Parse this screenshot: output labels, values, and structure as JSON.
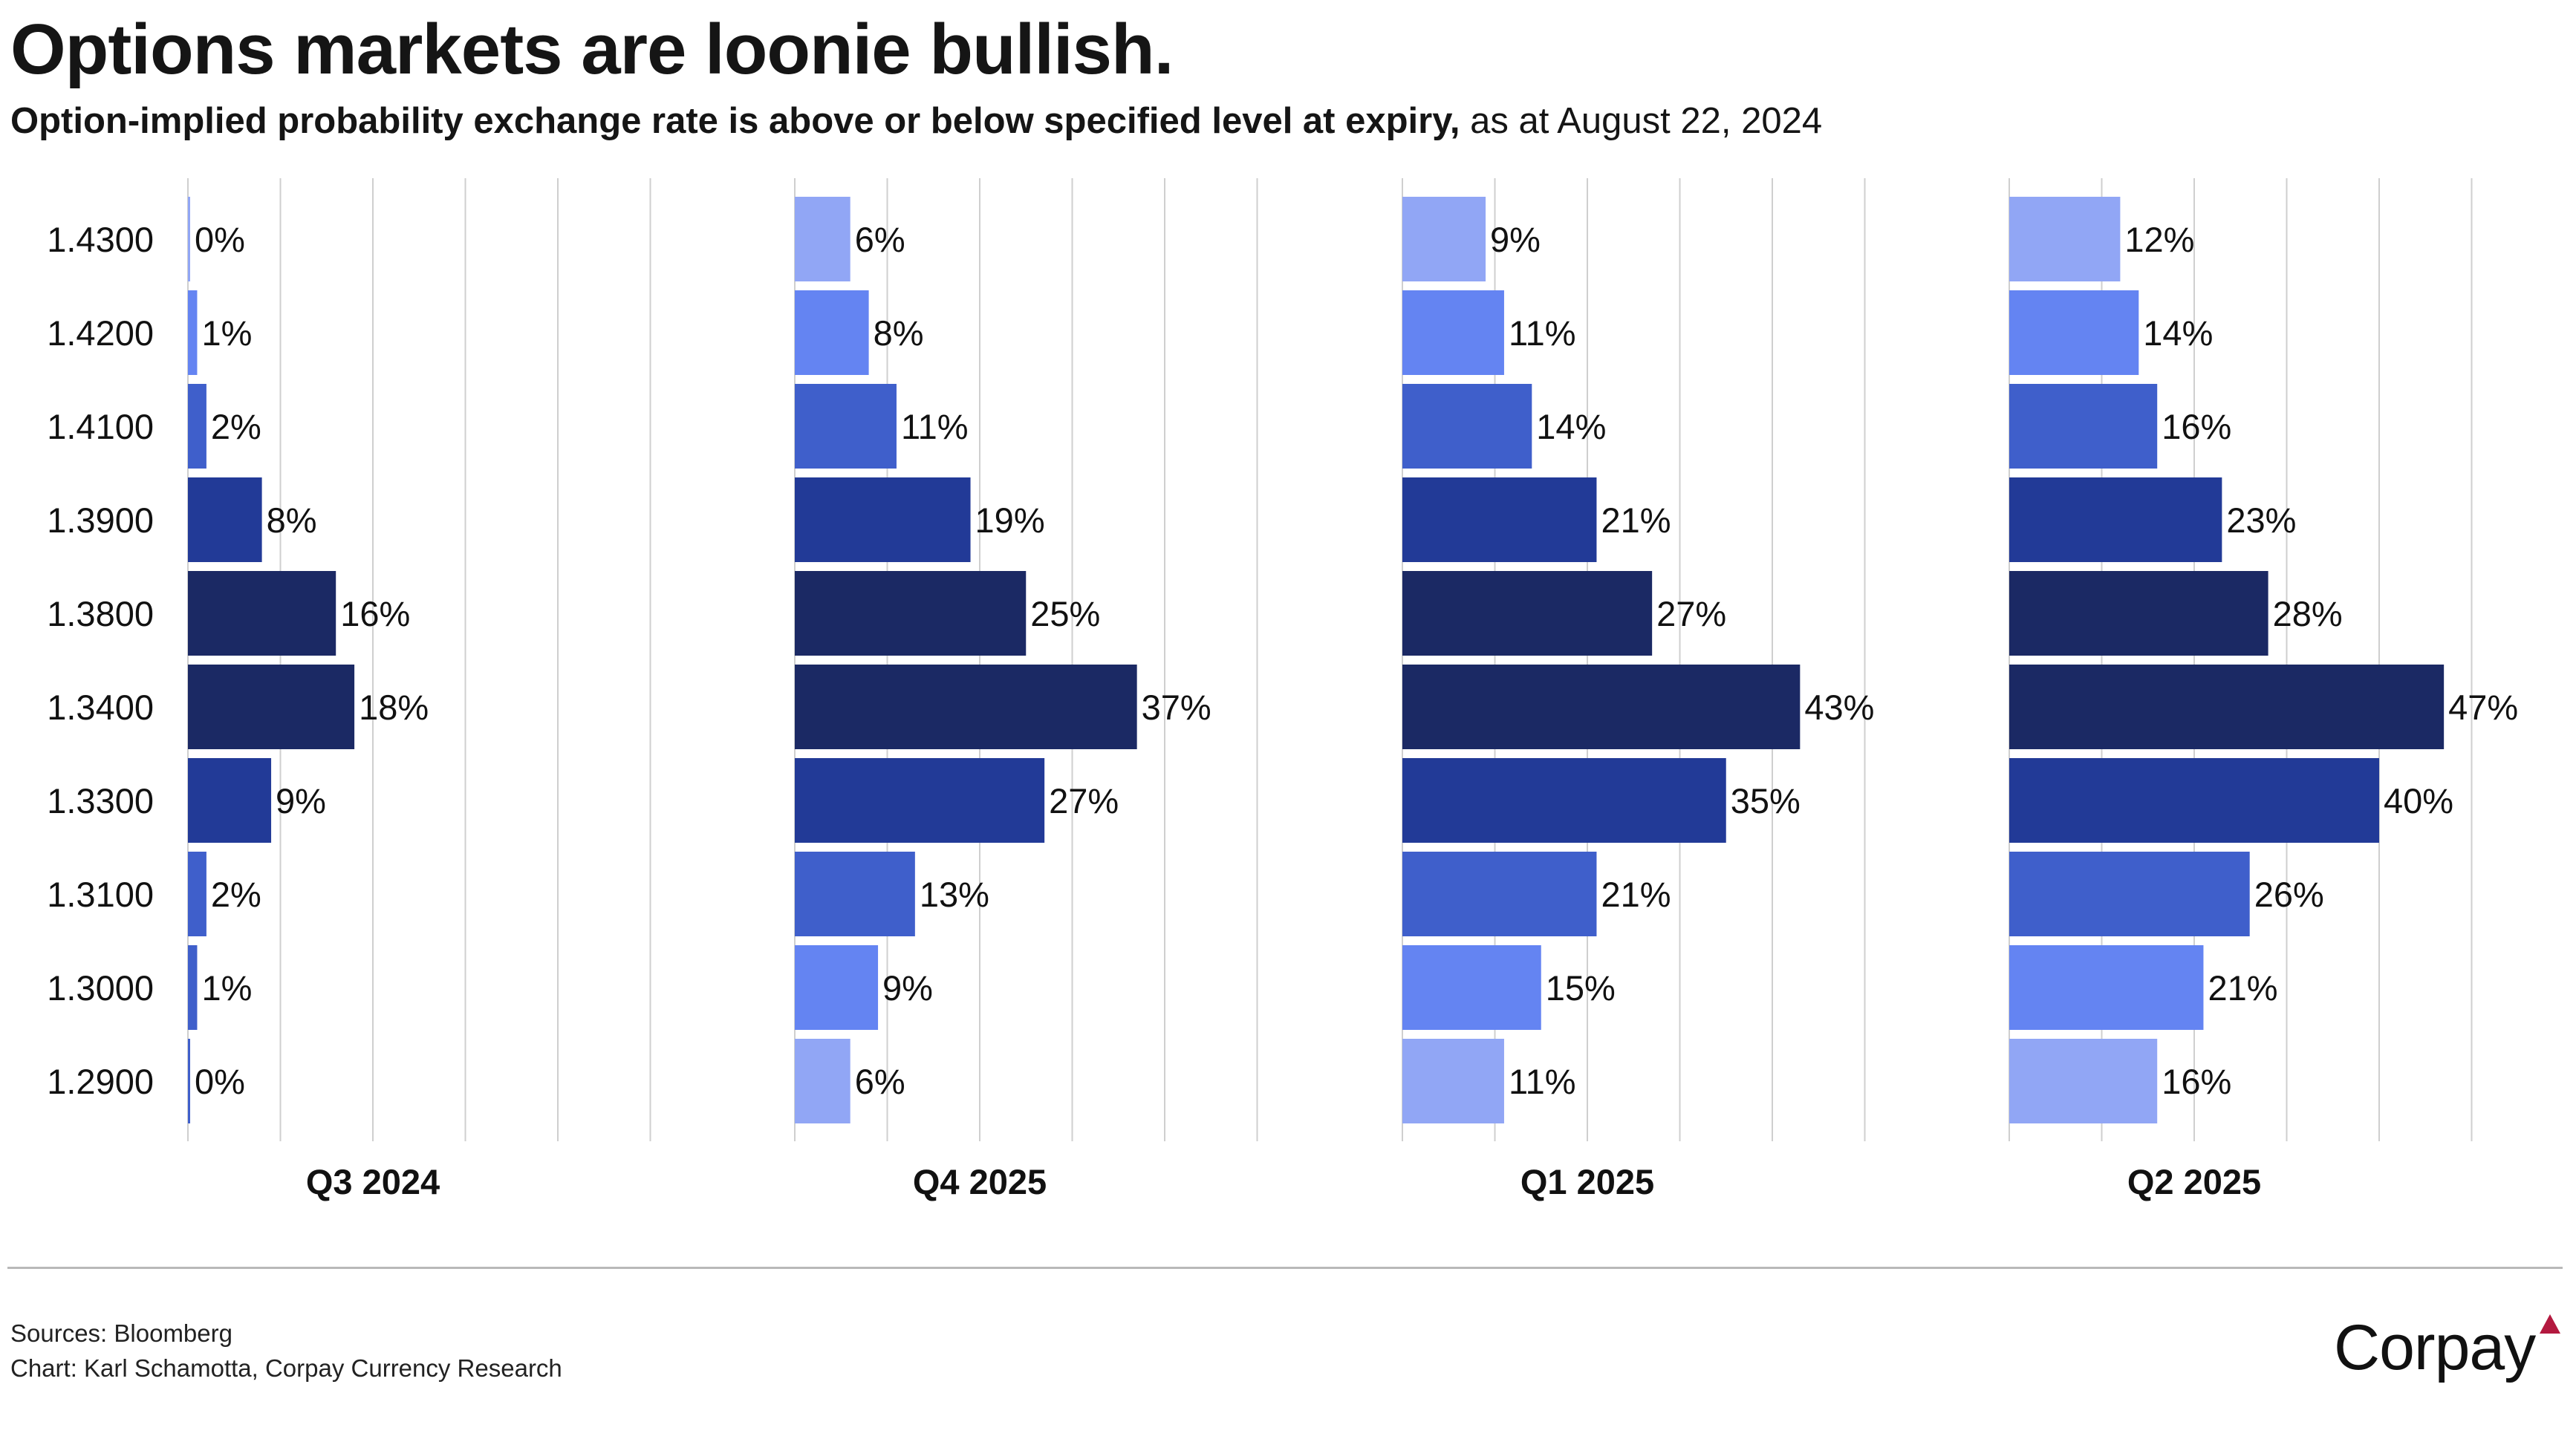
{
  "header": {
    "title": "Options markets are loonie bullish.",
    "subtitle_bold": "Option-implied probability exchange rate is above or below specified level at expiry,",
    "subtitle_regular": " as at August 22, 2024"
  },
  "footer": {
    "sources": "Sources: Bloomberg",
    "credit": "Chart: Karl Schamotta, Corpay Currency Research",
    "logo_text": "Corpay",
    "logo_accent_color": "#B3193F"
  },
  "chart_data": {
    "type": "bar",
    "orientation": "horizontal",
    "title": "Options markets are loonie bullish.",
    "subtitle": "Option-implied probability exchange rate is above or below specified level at expiry, as at August 22, 2024",
    "xlabel": "",
    "ylabel": "",
    "unit": "%",
    "xlim": [
      0,
      50
    ],
    "grid": true,
    "grid_step": 10,
    "legend": "none",
    "categories": [
      "1.4300",
      "1.4200",
      "1.4100",
      "1.3900",
      "1.3800",
      "1.3400",
      "1.3300",
      "1.3100",
      "1.3000",
      "1.2900"
    ],
    "category_colors": [
      "#91A6F5",
      "#6484F2",
      "#3F5FCB",
      "#223A97",
      "#1B2964",
      "#1B2964",
      "#223A97",
      "#3F5FCB",
      "#6484F2",
      "#91A6F5"
    ],
    "q3_colors_override": [
      "#91A6F5",
      "#6484F2",
      "#3F5FCB",
      "#223A97",
      "#1B2964",
      "#1B2964",
      "#223A97",
      "#3F5FCB",
      "#3F5FCB",
      "#3F5FCB"
    ],
    "panels": [
      {
        "name": "Q3 2024",
        "values": [
          0,
          1,
          2,
          8,
          16,
          18,
          9,
          2,
          1,
          0
        ]
      },
      {
        "name": "Q4 2025",
        "values": [
          6,
          8,
          11,
          19,
          25,
          37,
          27,
          13,
          9,
          6
        ]
      },
      {
        "name": "Q1 2025",
        "values": [
          9,
          11,
          14,
          21,
          27,
          43,
          35,
          21,
          15,
          11
        ]
      },
      {
        "name": "Q2 2025",
        "values": [
          12,
          14,
          16,
          23,
          28,
          47,
          40,
          26,
          21,
          16
        ]
      }
    ],
    "source": "Sources: Bloomberg"
  }
}
